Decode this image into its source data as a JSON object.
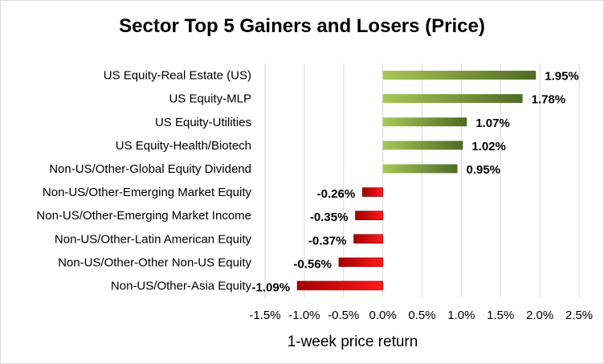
{
  "chart_data": {
    "type": "bar",
    "orientation": "horizontal",
    "title": "Sector Top 5 Gainers and Losers (Price)",
    "xlabel": "1-week price return",
    "ylabel": "",
    "categories": [
      "US Equity-Real Estate (US)",
      "US Equity-MLP",
      "US Equity-Utilities",
      "US Equity-Health/Biotech",
      "Non-US/Other-Global Equity Dividend",
      "Non-US/Other-Emerging Market Equity",
      "Non-US/Other-Emerging Market Income",
      "Non-US/Other-Latin American Equity",
      "Non-US/Other-Other Non-US Equity",
      "Non-US/Other-Asia Equity"
    ],
    "values": [
      1.95,
      1.78,
      1.07,
      1.02,
      0.95,
      -0.26,
      -0.35,
      -0.37,
      -0.56,
      -1.09
    ],
    "value_labels": [
      "1.95%",
      "1.78%",
      "1.07%",
      "1.02%",
      "0.95%",
      "-0.26%",
      "-0.35%",
      "-0.37%",
      "-0.56%",
      "-1.09%"
    ],
    "xlim": [
      -1.5,
      2.5
    ],
    "xticks": [
      -1.5,
      -1.0,
      -0.5,
      0.0,
      0.5,
      1.0,
      1.5,
      2.0,
      2.5
    ],
    "xtick_labels": [
      "-1.5%",
      "-1.0%",
      "-0.5%",
      "0.0%",
      "0.5%",
      "1.0%",
      "1.5%",
      "2.0%",
      "2.5%"
    ],
    "grid": "vertical",
    "legend": "none",
    "colors": {
      "gain_light": "#a6c857",
      "gain_dark": "#4e6b23",
      "loss_light": "#ff1a1a",
      "loss_dark": "#a30000",
      "grid": "#d9d9d9"
    }
  }
}
